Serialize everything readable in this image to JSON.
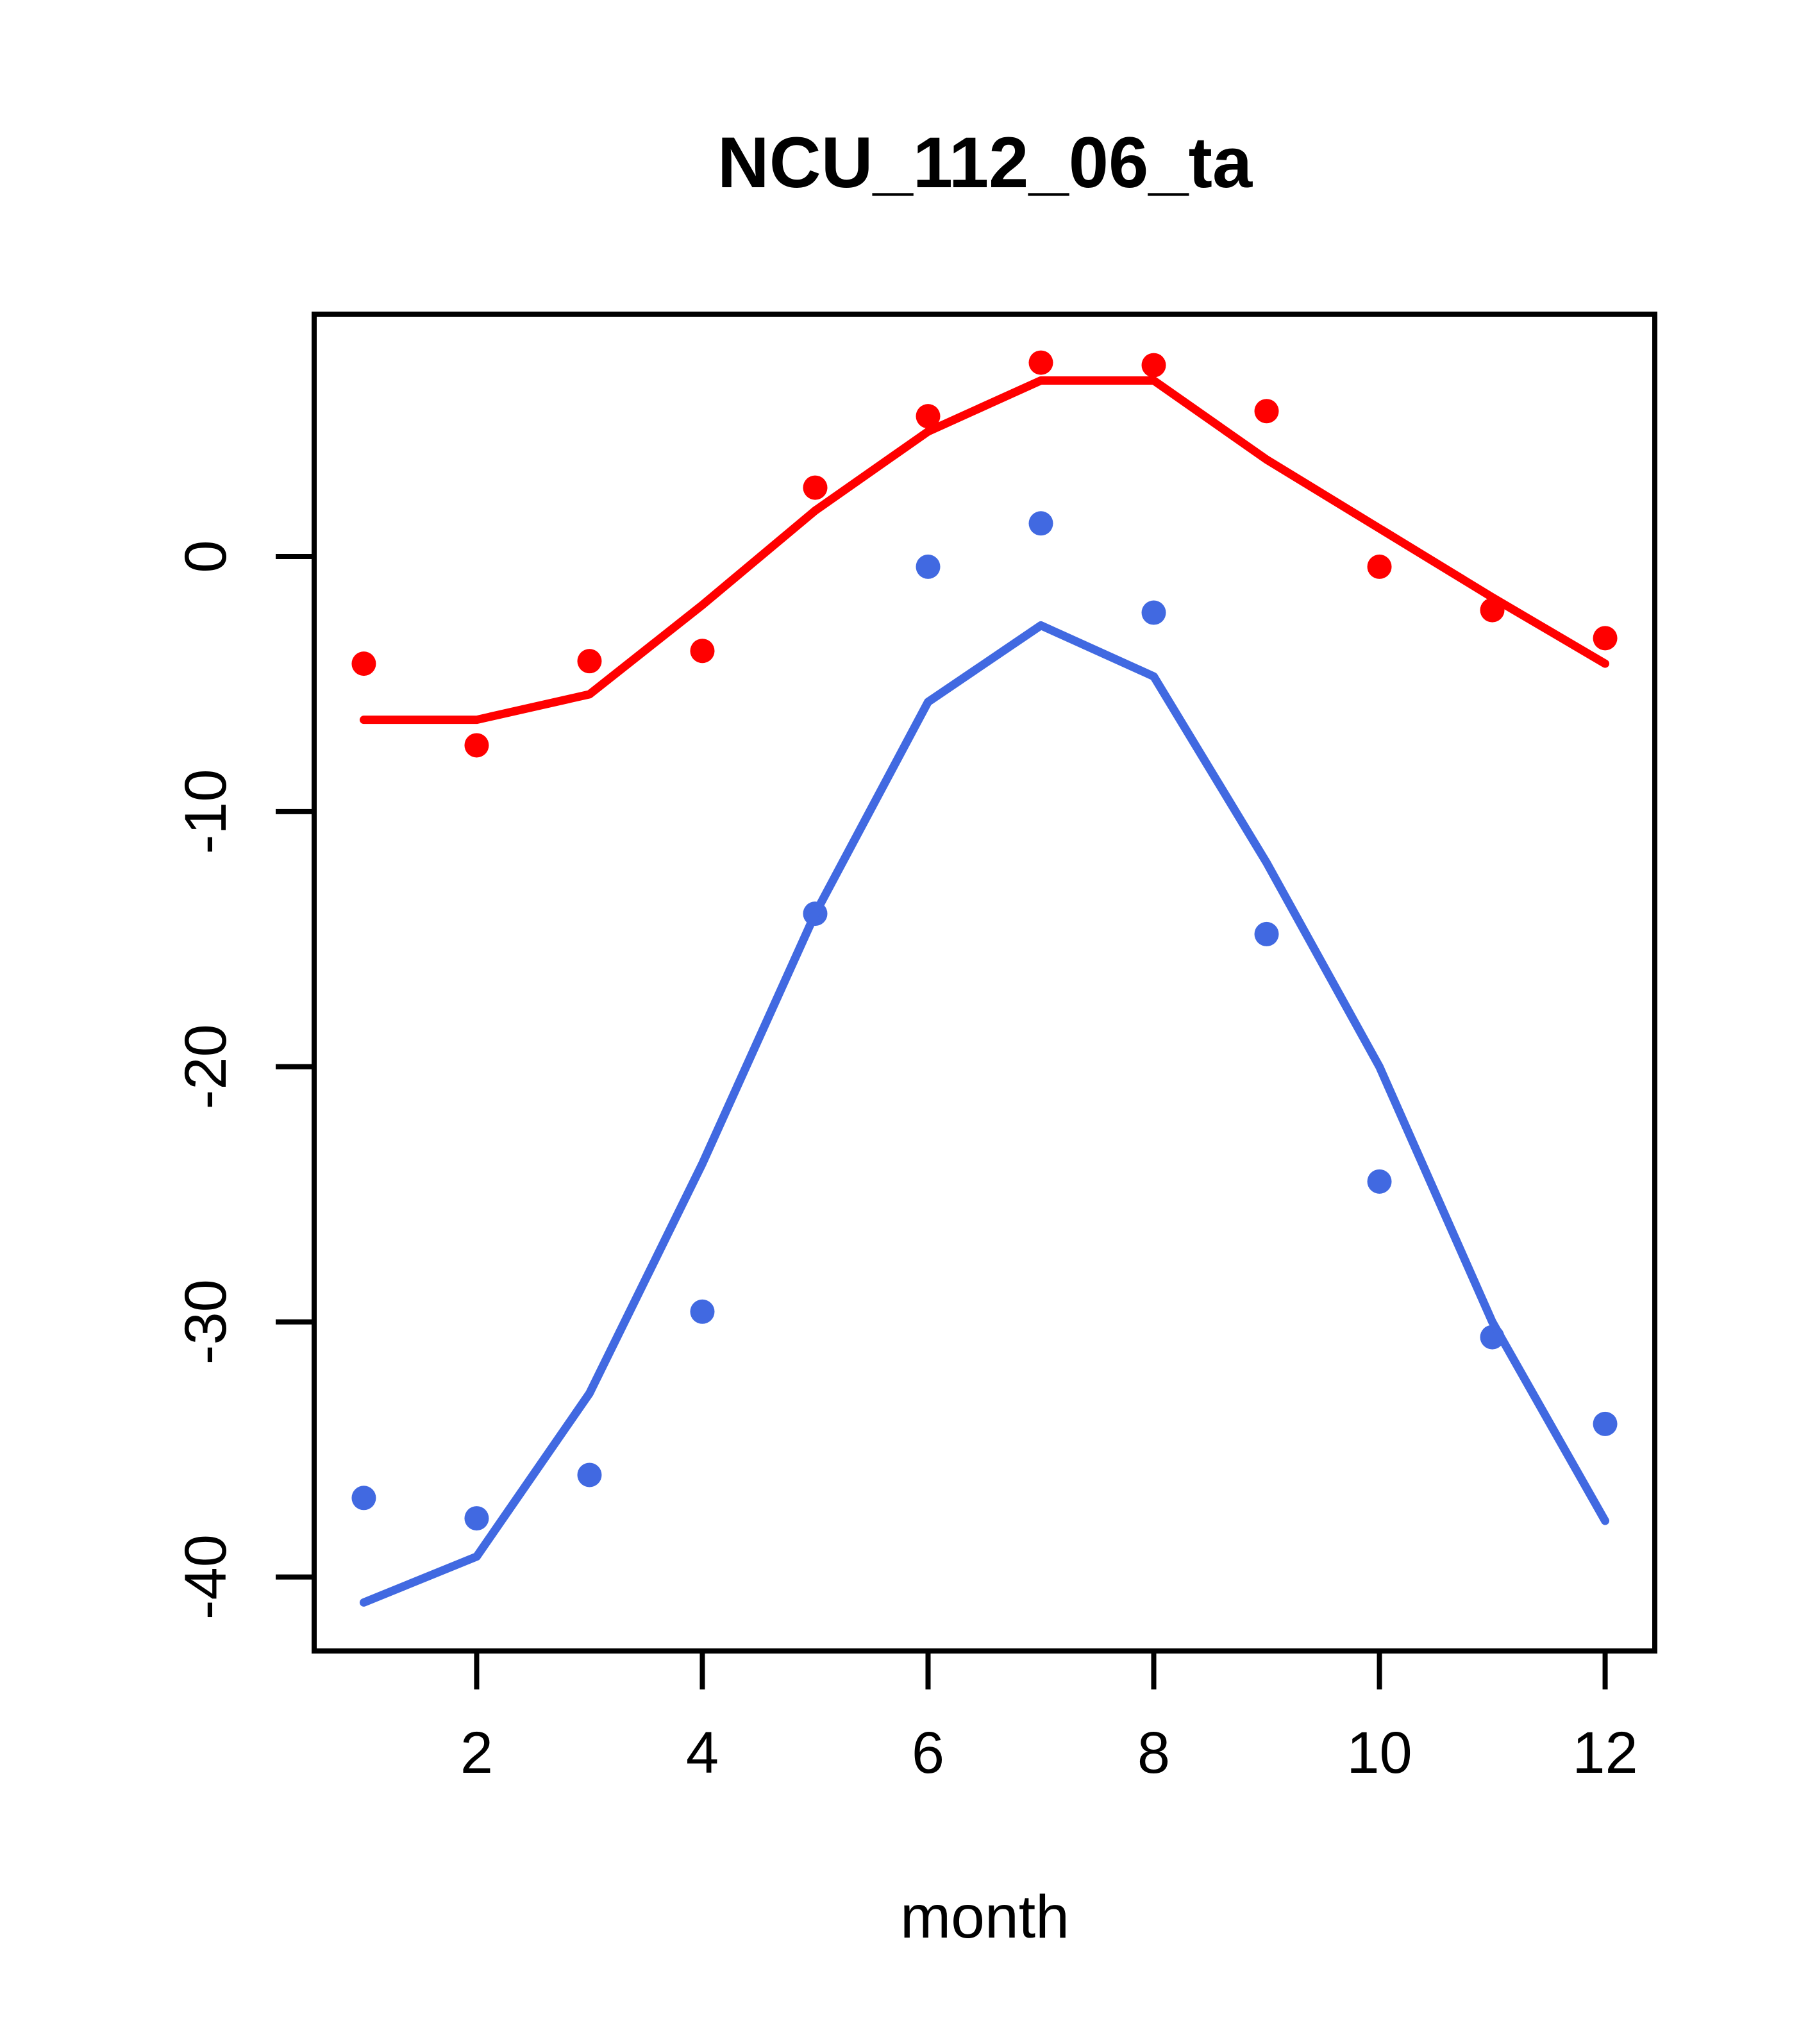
{
  "title": "NCU_112_06_ta",
  "xlabel": "month",
  "colors": {
    "red_series": "#FF0000",
    "blue_series": "#4169E1",
    "axis": "#000000",
    "background": "#FFFFFF"
  },
  "chart_data": {
    "type": "line",
    "title": "NCU_112_06_ta",
    "xlabel": "month",
    "ylabel": "",
    "x": [
      1,
      2,
      3,
      4,
      5,
      6,
      7,
      8,
      9,
      10,
      11,
      12
    ],
    "x_ticks": [
      2,
      4,
      6,
      8,
      10,
      12
    ],
    "y_ticks": [
      0,
      -10,
      -20,
      -30,
      -40
    ],
    "xlim": [
      0.56,
      12.44
    ],
    "ylim": [
      -42.9,
      9.5
    ],
    "grid": false,
    "legend": "none",
    "series": [
      {
        "name": "red-points",
        "kind": "scatter",
        "color_key": "red_series",
        "values": [
          -4.2,
          -7.4,
          -4.1,
          -3.7,
          2.7,
          5.5,
          7.6,
          7.5,
          5.7,
          -0.4,
          -2.1,
          -3.2
        ]
      },
      {
        "name": "red-line",
        "kind": "line",
        "color_key": "red_series",
        "values": [
          -6.4,
          -6.4,
          -5.4,
          -1.9,
          1.8,
          4.9,
          6.9,
          6.9,
          3.8,
          1.1,
          -1.6,
          -4.2
        ]
      },
      {
        "name": "blue-points",
        "kind": "scatter",
        "color_key": "blue_series",
        "values": [
          -36.9,
          -37.7,
          -36.0,
          -29.6,
          -14.0,
          -0.4,
          1.3,
          -2.2,
          -14.8,
          -24.5,
          -30.6,
          -34.0
        ]
      },
      {
        "name": "blue-line",
        "kind": "line",
        "color_key": "blue_series",
        "values": [
          -41.0,
          -39.2,
          -32.8,
          -23.8,
          -14.0,
          -5.7,
          -2.7,
          -4.7,
          -12.0,
          -20.0,
          -30.0,
          -37.8
        ]
      }
    ]
  }
}
